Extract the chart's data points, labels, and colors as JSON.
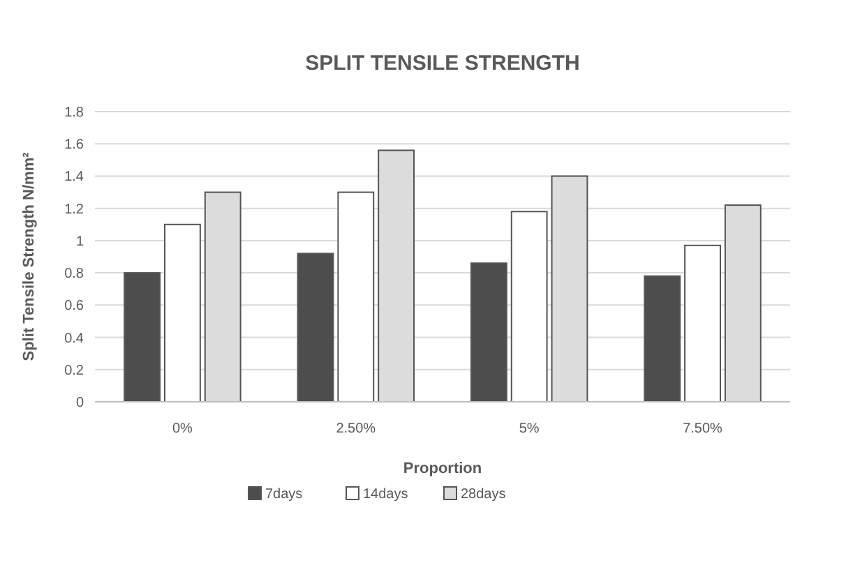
{
  "chart_data": {
    "type": "bar",
    "title": "SPLIT TENSILE STRENGTH",
    "xlabel": "Proportion",
    "ylabel": "Split Tensile Strength N/mm²",
    "categories": [
      "0%",
      "2.50%",
      "5%",
      "7.50%"
    ],
    "series": [
      {
        "name": "7days",
        "color": "#4d4d4d",
        "values": [
          0.8,
          0.92,
          0.86,
          0.78
        ]
      },
      {
        "name": "14days",
        "color": "#ffffff",
        "values": [
          1.1,
          1.3,
          1.18,
          0.97
        ]
      },
      {
        "name": "28days",
        "color": "#dcdcdc",
        "values": [
          1.3,
          1.56,
          1.4,
          1.22
        ]
      }
    ],
    "ylim": [
      0,
      1.8
    ],
    "yticks": [
      0,
      0.2,
      0.4,
      0.6,
      0.8,
      1,
      1.2,
      1.4,
      1.6,
      1.8
    ],
    "grid": "y",
    "legend": "bottom"
  }
}
